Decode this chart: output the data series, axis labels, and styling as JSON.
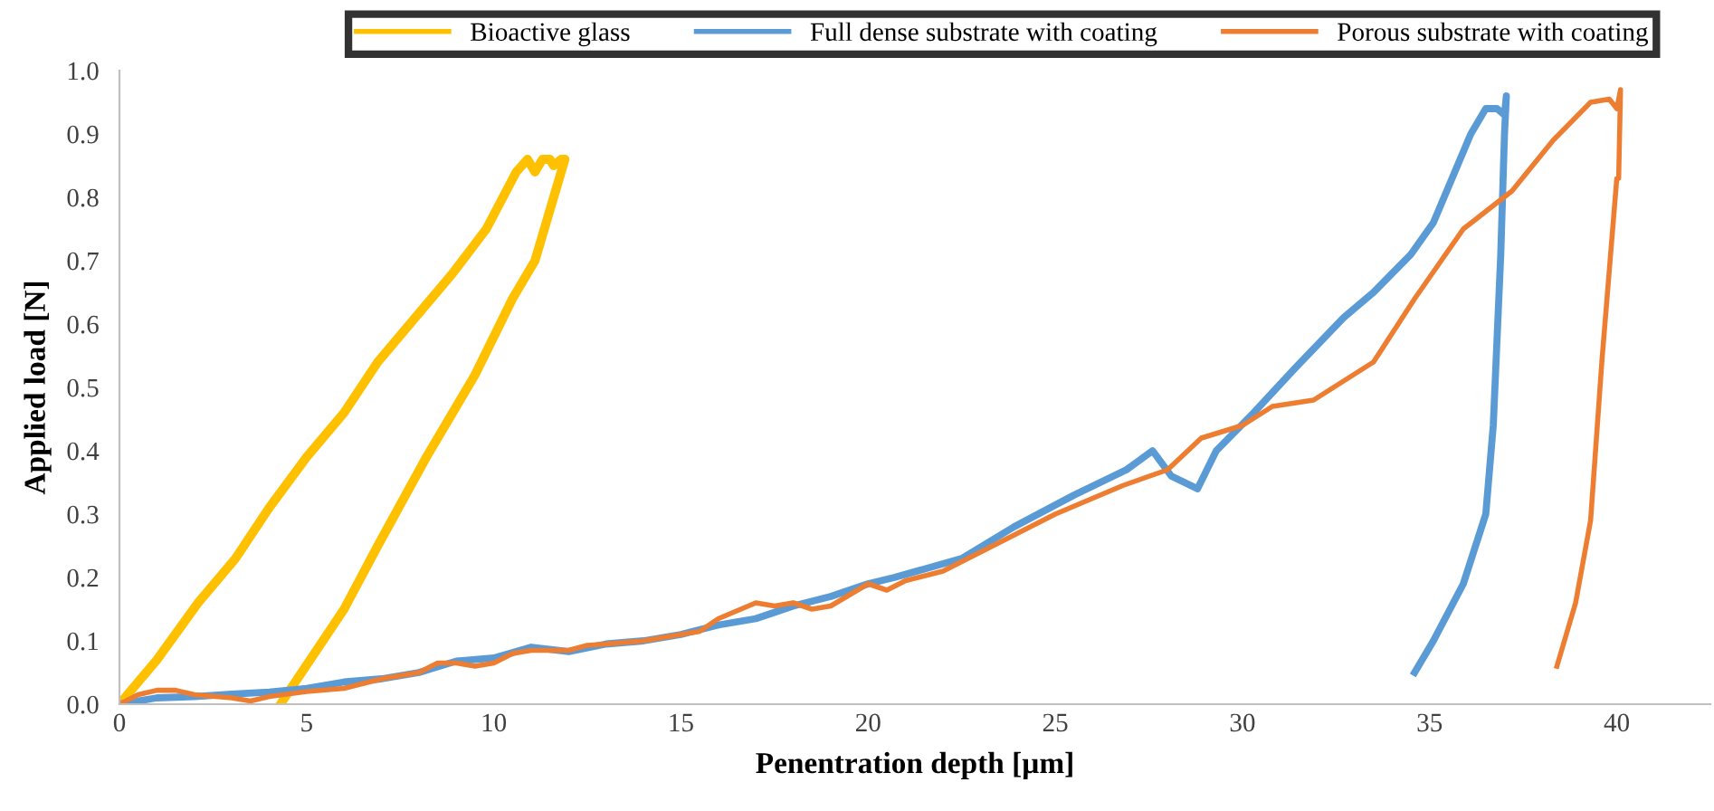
{
  "chart_data": {
    "type": "line",
    "xlabel": "Penentration depth [µm]",
    "ylabel": "Applied load [N]",
    "xlim": [
      0,
      42.5
    ],
    "xticks": [
      0,
      5,
      10,
      15,
      20,
      25,
      30,
      35,
      40
    ],
    "ylim": [
      0,
      1.0
    ],
    "yticks": [
      {
        "value": 0,
        "label": "0.0"
      },
      0.1,
      0.2,
      0.3,
      0.4,
      0.5,
      0.6,
      0.7,
      0.8,
      0.9,
      {
        "value": 1.0,
        "label": "1.0"
      }
    ],
    "grid": false,
    "legend": "top",
    "marker": "none",
    "line_style": "solid",
    "series": [
      {
        "name": "Bioactive glass",
        "color": "#ffc000",
        "x": [
          0,
          1.0,
          2.1,
          3.1,
          4.0,
          5.0,
          6.0,
          6.9,
          7.9,
          8.9,
          9.8,
          10.6,
          10.9,
          11.1,
          11.3,
          11.5,
          11.6,
          11.8,
          11.9,
          11.9,
          11.6,
          11.1,
          10.5,
          9.5,
          8.2,
          6.9,
          6.0,
          4.3
        ],
        "values": [
          0,
          0.07,
          0.16,
          0.23,
          0.31,
          0.39,
          0.46,
          0.54,
          0.61,
          0.68,
          0.75,
          0.84,
          0.86,
          0.84,
          0.86,
          0.86,
          0.85,
          0.86,
          0.86,
          0.86,
          0.8,
          0.7,
          0.64,
          0.52,
          0.39,
          0.25,
          0.15,
          0
        ]
      },
      {
        "name": "Full dense substrate with coating",
        "color": "#5b9bd5",
        "x": [
          0,
          1,
          2,
          3,
          4,
          5,
          6,
          7,
          8,
          9,
          10,
          11,
          12,
          13,
          14,
          15,
          16,
          17,
          18,
          19,
          20,
          20.7,
          22.5,
          23.9,
          25.5,
          26.9,
          27.6,
          28.1,
          28.8,
          29.3,
          30.3,
          31.4,
          32.7,
          33.5,
          34.5,
          35.1,
          35.6,
          36.1,
          36.5,
          36.8,
          37.0,
          37.05,
          37.0,
          36.9,
          36.7,
          36.5,
          35.9,
          35.1,
          34.6
        ],
        "values": [
          0,
          0.01,
          0.012,
          0.016,
          0.019,
          0.025,
          0.035,
          0.04,
          0.05,
          0.068,
          0.073,
          0.09,
          0.083,
          0.095,
          0.1,
          0.11,
          0.125,
          0.135,
          0.155,
          0.17,
          0.19,
          0.2,
          0.23,
          0.28,
          0.33,
          0.37,
          0.4,
          0.36,
          0.34,
          0.4,
          0.46,
          0.53,
          0.61,
          0.65,
          0.71,
          0.76,
          0.83,
          0.9,
          0.94,
          0.94,
          0.93,
          0.96,
          0.9,
          0.71,
          0.44,
          0.3,
          0.19,
          0.1,
          0.05
        ]
      },
      {
        "name": "Porous substrate with coating",
        "color": "#ed7d31",
        "x": [
          0,
          0.5,
          1,
          1.5,
          2,
          3,
          3.5,
          4,
          5,
          6,
          7,
          8,
          8.5,
          9,
          9.5,
          10,
          10.5,
          11,
          12,
          12.5,
          13,
          14,
          15,
          15.5,
          16,
          17,
          17.5,
          18,
          18.5,
          19,
          20,
          20.5,
          21,
          22,
          23,
          24,
          25,
          26,
          26.8,
          28,
          28.9,
          30,
          30.8,
          31.9,
          33.5,
          34.6,
          35.9,
          37.2,
          38.3,
          39.3,
          39.8,
          40.0,
          40.1,
          40.05,
          40.0,
          39.6,
          39.3,
          38.9,
          38.4
        ],
        "values": [
          0,
          0.015,
          0.022,
          0.022,
          0.015,
          0.01,
          0.005,
          0.012,
          0.02,
          0.025,
          0.04,
          0.05,
          0.065,
          0.065,
          0.06,
          0.065,
          0.08,
          0.085,
          0.085,
          0.093,
          0.095,
          0.1,
          0.11,
          0.115,
          0.135,
          0.16,
          0.155,
          0.16,
          0.15,
          0.155,
          0.19,
          0.18,
          0.195,
          0.21,
          0.24,
          0.27,
          0.3,
          0.325,
          0.345,
          0.37,
          0.42,
          0.44,
          0.47,
          0.48,
          0.54,
          0.64,
          0.75,
          0.81,
          0.89,
          0.95,
          0.955,
          0.94,
          0.97,
          0.83,
          0.83,
          0.54,
          0.29,
          0.16,
          0.06
        ]
      }
    ]
  }
}
